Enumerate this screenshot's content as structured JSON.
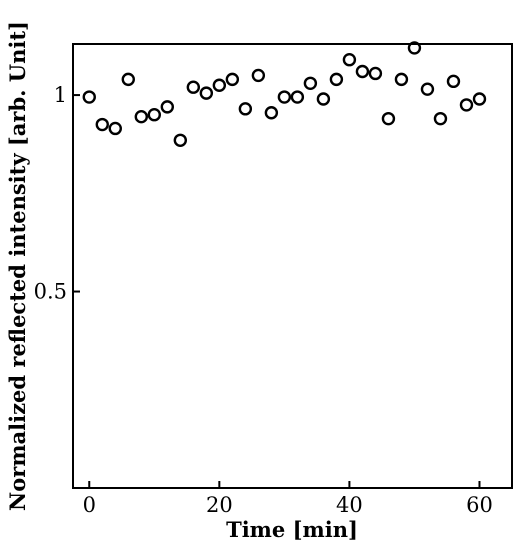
{
  "chart_data": {
    "type": "scatter",
    "title": "",
    "xlabel": "Time [min]",
    "ylabel": "Normalized reflected intensity [arb. Unit]",
    "xlim": [
      -2.5,
      65
    ],
    "ylim": [
      0.0,
      1.13
    ],
    "xticks": [
      0,
      20,
      40,
      60
    ],
    "yticks": [
      0.5,
      1
    ],
    "xtick_labels": [
      "0",
      "20",
      "40",
      "60"
    ],
    "ytick_labels": [
      "0.5",
      "1"
    ],
    "grid": false,
    "legend": "none",
    "marker": "open-circle",
    "colors": {
      "marker": "#000000",
      "axis": "#000000"
    },
    "series": [
      {
        "x": [
          0,
          2,
          4,
          6,
          8,
          10,
          12,
          14,
          16,
          18,
          20,
          22,
          24,
          26,
          28,
          30,
          32,
          34,
          36,
          38,
          40,
          42,
          44,
          46,
          48,
          50,
          52,
          54,
          56,
          58,
          60
        ],
        "y": [
          0.995,
          0.925,
          0.915,
          1.04,
          0.945,
          0.95,
          0.97,
          0.885,
          1.02,
          1.005,
          1.025,
          1.04,
          0.965,
          1.05,
          0.955,
          0.995,
          0.995,
          1.03,
          0.99,
          1.04,
          1.09,
          1.06,
          1.055,
          0.94,
          1.04,
          1.12,
          1.015,
          0.94,
          1.035,
          0.975,
          0.99
        ]
      }
    ]
  }
}
